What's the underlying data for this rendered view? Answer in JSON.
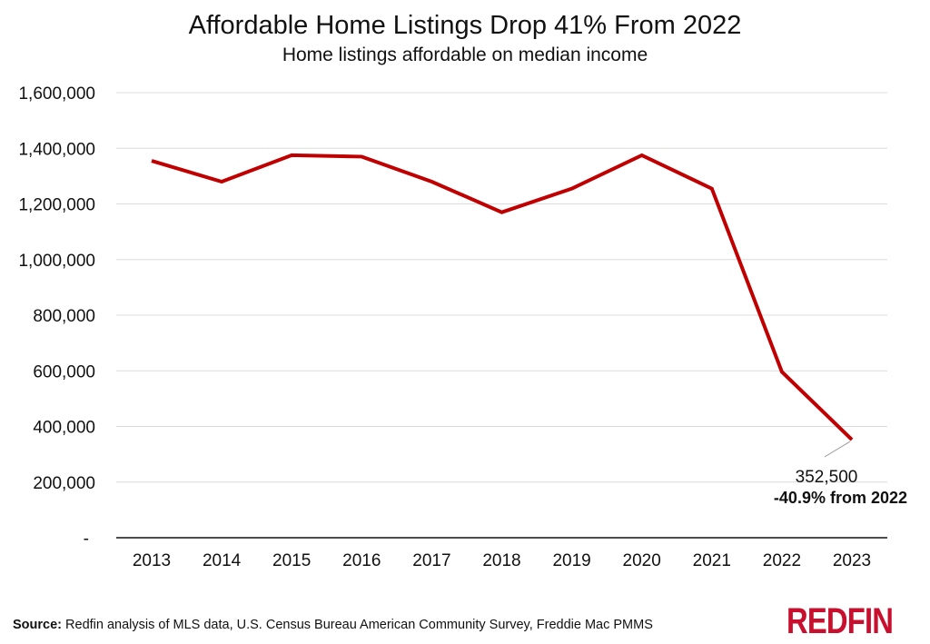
{
  "chart_data": {
    "type": "line",
    "title": "Affordable Home Listings Drop 41% From 2022",
    "subtitle": "Home listings affordable on median income",
    "xlabel": "",
    "ylabel": "",
    "categories": [
      "2013",
      "2014",
      "2015",
      "2016",
      "2017",
      "2018",
      "2019",
      "2020",
      "2021",
      "2022",
      "2023"
    ],
    "series": [
      {
        "values": [
          1355000,
          1280000,
          1375000,
          1370000,
          1280000,
          1170000,
          1255000,
          1375000,
          1255000,
          596400,
          352500
        ],
        "color": "#c00000"
      }
    ],
    "ylim": [
      0,
      1600000
    ],
    "yticks": [
      0,
      200000,
      400000,
      600000,
      800000,
      1000000,
      1200000,
      1400000,
      1600000
    ],
    "ytick_labels": [
      "-",
      "200,000",
      "400,000",
      "600,000",
      "800,000",
      "1,000,000",
      "1,200,000",
      "1,400,000",
      "1,600,000"
    ],
    "grid": true,
    "annotation": {
      "value_label": "352,500",
      "change_label": "-40.9% from 2022"
    }
  },
  "footer": {
    "source_label": "Source:",
    "source_text": " Redfin analysis of MLS data, U.S. Census Bureau American Community Survey, Freddie Mac PMMS",
    "logo": "REDFIN"
  }
}
